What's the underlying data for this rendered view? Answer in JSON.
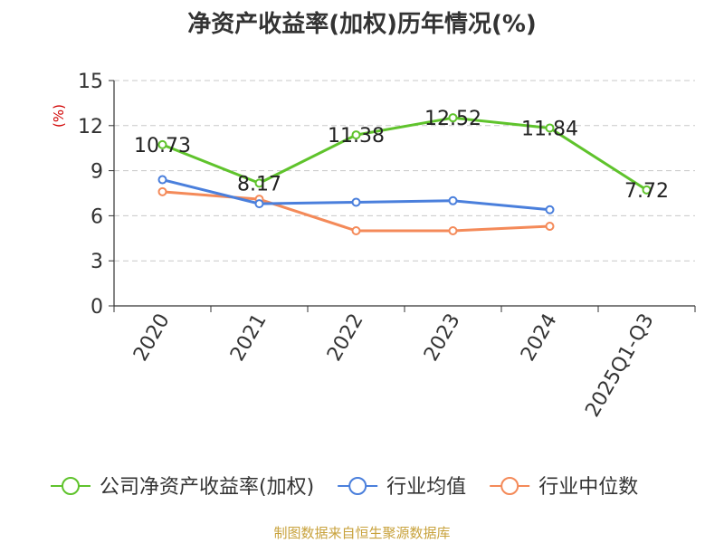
{
  "chart_data": {
    "type": "line",
    "title": "净资产收益率(加权)历年情况(%)",
    "ylabel": "(%)",
    "xlabel": "",
    "categories": [
      "2020",
      "2021",
      "2022",
      "2023",
      "2024",
      "2025Q1-Q3"
    ],
    "ylim": [
      0,
      15
    ],
    "yticks": [
      "0",
      "3",
      "6",
      "9",
      "12",
      "15"
    ],
    "grid": true,
    "legend_position": "bottom",
    "series": [
      {
        "name": "公司净资产收益率(加权)",
        "color": "#5fc32c",
        "values": [
          10.73,
          8.17,
          11.38,
          12.52,
          11.84,
          7.72
        ],
        "labels": [
          "10.73",
          "8.17",
          "11.38",
          "12.52",
          "11.84",
          "7.72"
        ]
      },
      {
        "name": "行业均值",
        "color": "#4a7fdc",
        "values": [
          8.4,
          6.8,
          6.9,
          7.0,
          6.4,
          null
        ]
      },
      {
        "name": "行业中位数",
        "color": "#f48a59",
        "values": [
          7.6,
          7.1,
          5.0,
          5.0,
          5.3,
          null
        ]
      }
    ]
  },
  "source": "制图数据来自恒生聚源数据库"
}
